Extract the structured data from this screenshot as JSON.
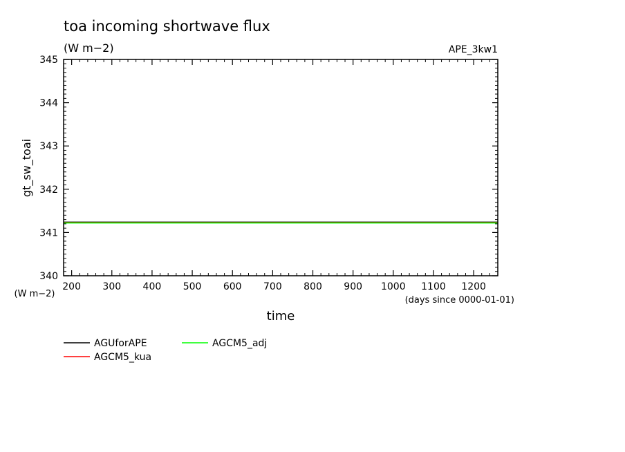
{
  "chart_data": {
    "type": "line",
    "title": "toa incoming shortwave flux",
    "units": "(W m−2)",
    "dataset": "APE_3kw1",
    "ylabel": "gt_sw_toai",
    "yunits": "(W m−2)",
    "xlabel": "time",
    "xunits": "(days since 0000-01-01)",
    "xlim": [
      180,
      1260
    ],
    "ylim": [
      340,
      345
    ],
    "xticks": [
      200,
      300,
      400,
      500,
      600,
      700,
      800,
      900,
      1000,
      1100,
      1200
    ],
    "yticks": [
      340,
      341,
      342,
      343,
      344,
      345
    ],
    "grid": false,
    "legend_position": "bottom-left",
    "series": [
      {
        "name": "AGUforAPE",
        "color": "#000000",
        "x": [
          180,
          1260
        ],
        "y": [
          341.24,
          341.24
        ]
      },
      {
        "name": "AGCM5_kua",
        "color": "#ff0000",
        "x": [
          180,
          1260
        ],
        "y": [
          341.23,
          341.23
        ]
      },
      {
        "name": "AGCM5_adj",
        "color": "#00ff00",
        "x": [
          180,
          1260
        ],
        "y": [
          341.22,
          341.22
        ]
      }
    ]
  }
}
